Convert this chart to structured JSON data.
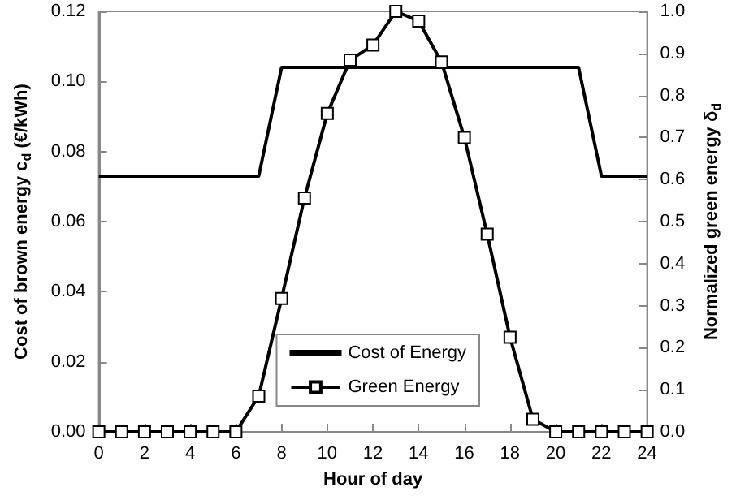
{
  "chart_data": {
    "type": "line",
    "xlabel": "Hour of day",
    "ylabel": "Cost of brown energy c$_{d}$ (€/kWh)",
    "y2label": "Normalized green energy δ$_{d}$",
    "series": [
      {
        "name": "Cost of Energy",
        "color": "#000000",
        "marker": "none",
        "x": [
          0,
          7,
          8,
          21,
          22,
          24
        ],
        "values": [
          0.073,
          0.073,
          0.104,
          0.104,
          0.073,
          0.073
        ]
      },
      {
        "name": "Green Energy",
        "color": "#000000",
        "marker": "square",
        "axis": "y2",
        "x": [
          0,
          1,
          2,
          3,
          4,
          5,
          6,
          7,
          8,
          9,
          10,
          11,
          12,
          13,
          14,
          15,
          16,
          17,
          18,
          19,
          20,
          21,
          22,
          23,
          24
        ],
        "values": [
          0,
          0,
          0,
          0,
          0,
          0,
          0,
          0.085,
          0.317,
          0.556,
          0.757,
          0.884,
          0.92,
          1.0,
          0.977,
          0.88,
          0.7,
          0.47,
          0.225,
          0.03,
          0,
          0,
          0,
          0,
          0
        ]
      }
    ],
    "xlim": [
      0,
      24
    ],
    "xticks": [
      0,
      2,
      4,
      6,
      8,
      10,
      12,
      14,
      16,
      18,
      20,
      22,
      24
    ],
    "ylim": [
      0,
      0.12
    ],
    "yticks": [
      {
        "value": 0,
        "label": "0.00"
      },
      {
        "value": 0.02,
        "label": "0.02"
      },
      {
        "value": 0.04,
        "label": "0.04"
      },
      {
        "value": 0.06,
        "label": "0.06"
      },
      {
        "value": 0.08,
        "label": "0.08"
      },
      {
        "value": 0.1,
        "label": "0.10"
      },
      {
        "value": 0.12,
        "label": "0.12"
      }
    ],
    "y2lim": [
      0,
      1
    ],
    "y2ticks": [
      {
        "value": 0,
        "label": "0.0"
      },
      {
        "value": 0.1,
        "label": "0.1"
      },
      {
        "value": 0.2,
        "label": "0.2"
      },
      {
        "value": 0.3,
        "label": "0.3"
      },
      {
        "value": 0.4,
        "label": "0.4"
      },
      {
        "value": 0.5,
        "label": "0.5"
      },
      {
        "value": 0.6,
        "label": "0.6"
      },
      {
        "value": 0.7,
        "label": "0.7"
      },
      {
        "value": 0.8,
        "label": "0.8"
      },
      {
        "value": 0.9,
        "label": "0.9"
      },
      {
        "value": 1,
        "label": "1.0"
      }
    ],
    "grid": false,
    "legend": "bottom right",
    "line_style": "solid"
  }
}
